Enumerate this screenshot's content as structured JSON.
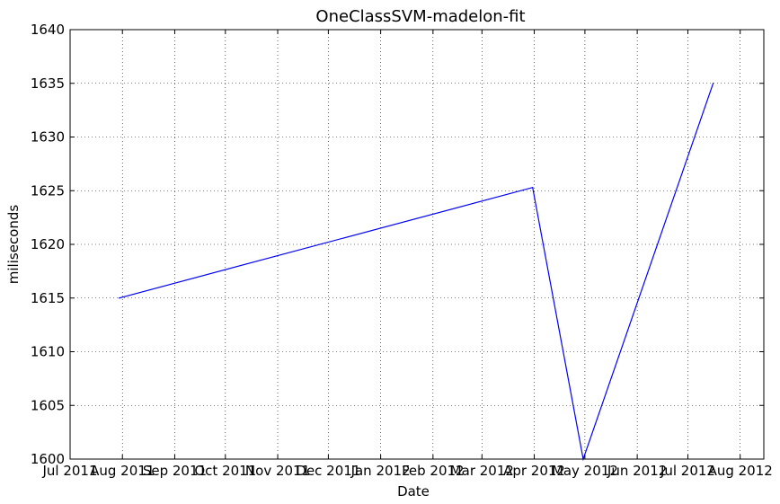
{
  "chart_data": {
    "type": "line",
    "title": "OneClassSVM-madelon-fit",
    "xlabel": "Date",
    "ylabel": "miliseconds",
    "ylim": [
      1600,
      1640
    ],
    "xlim": [
      "2011-07-01",
      "2012-08-15"
    ],
    "yticks": [
      1600,
      1605,
      1610,
      1615,
      1620,
      1625,
      1630,
      1635,
      1640
    ],
    "xticks": [
      {
        "date": "2011-07-01",
        "label": "Jul 2011"
      },
      {
        "date": "2011-08-01",
        "label": "Aug 2011"
      },
      {
        "date": "2011-09-01",
        "label": "Sep 2011"
      },
      {
        "date": "2011-10-01",
        "label": "Oct 2011"
      },
      {
        "date": "2011-11-01",
        "label": "Nov 2011"
      },
      {
        "date": "2011-12-01",
        "label": "Dec 2011"
      },
      {
        "date": "2012-01-01",
        "label": "Jan 2012"
      },
      {
        "date": "2012-02-01",
        "label": "Feb 2012"
      },
      {
        "date": "2012-03-01",
        "label": "Mar 2012"
      },
      {
        "date": "2012-04-01",
        "label": "Apr 2012"
      },
      {
        "date": "2012-05-01",
        "label": "May 2012"
      },
      {
        "date": "2012-06-01",
        "label": "Jun 2012"
      },
      {
        "date": "2012-07-01",
        "label": "Jul 2012"
      },
      {
        "date": "2012-08-01",
        "label": "Aug 2012"
      }
    ],
    "grid": true,
    "series": [
      {
        "color": "#0000ff",
        "x": [
          "2011-07-30",
          "2012-03-31",
          "2012-04-30",
          "2012-07-16"
        ],
        "y": [
          1615.0,
          1625.3,
          1600.0,
          1635.0
        ]
      }
    ]
  }
}
